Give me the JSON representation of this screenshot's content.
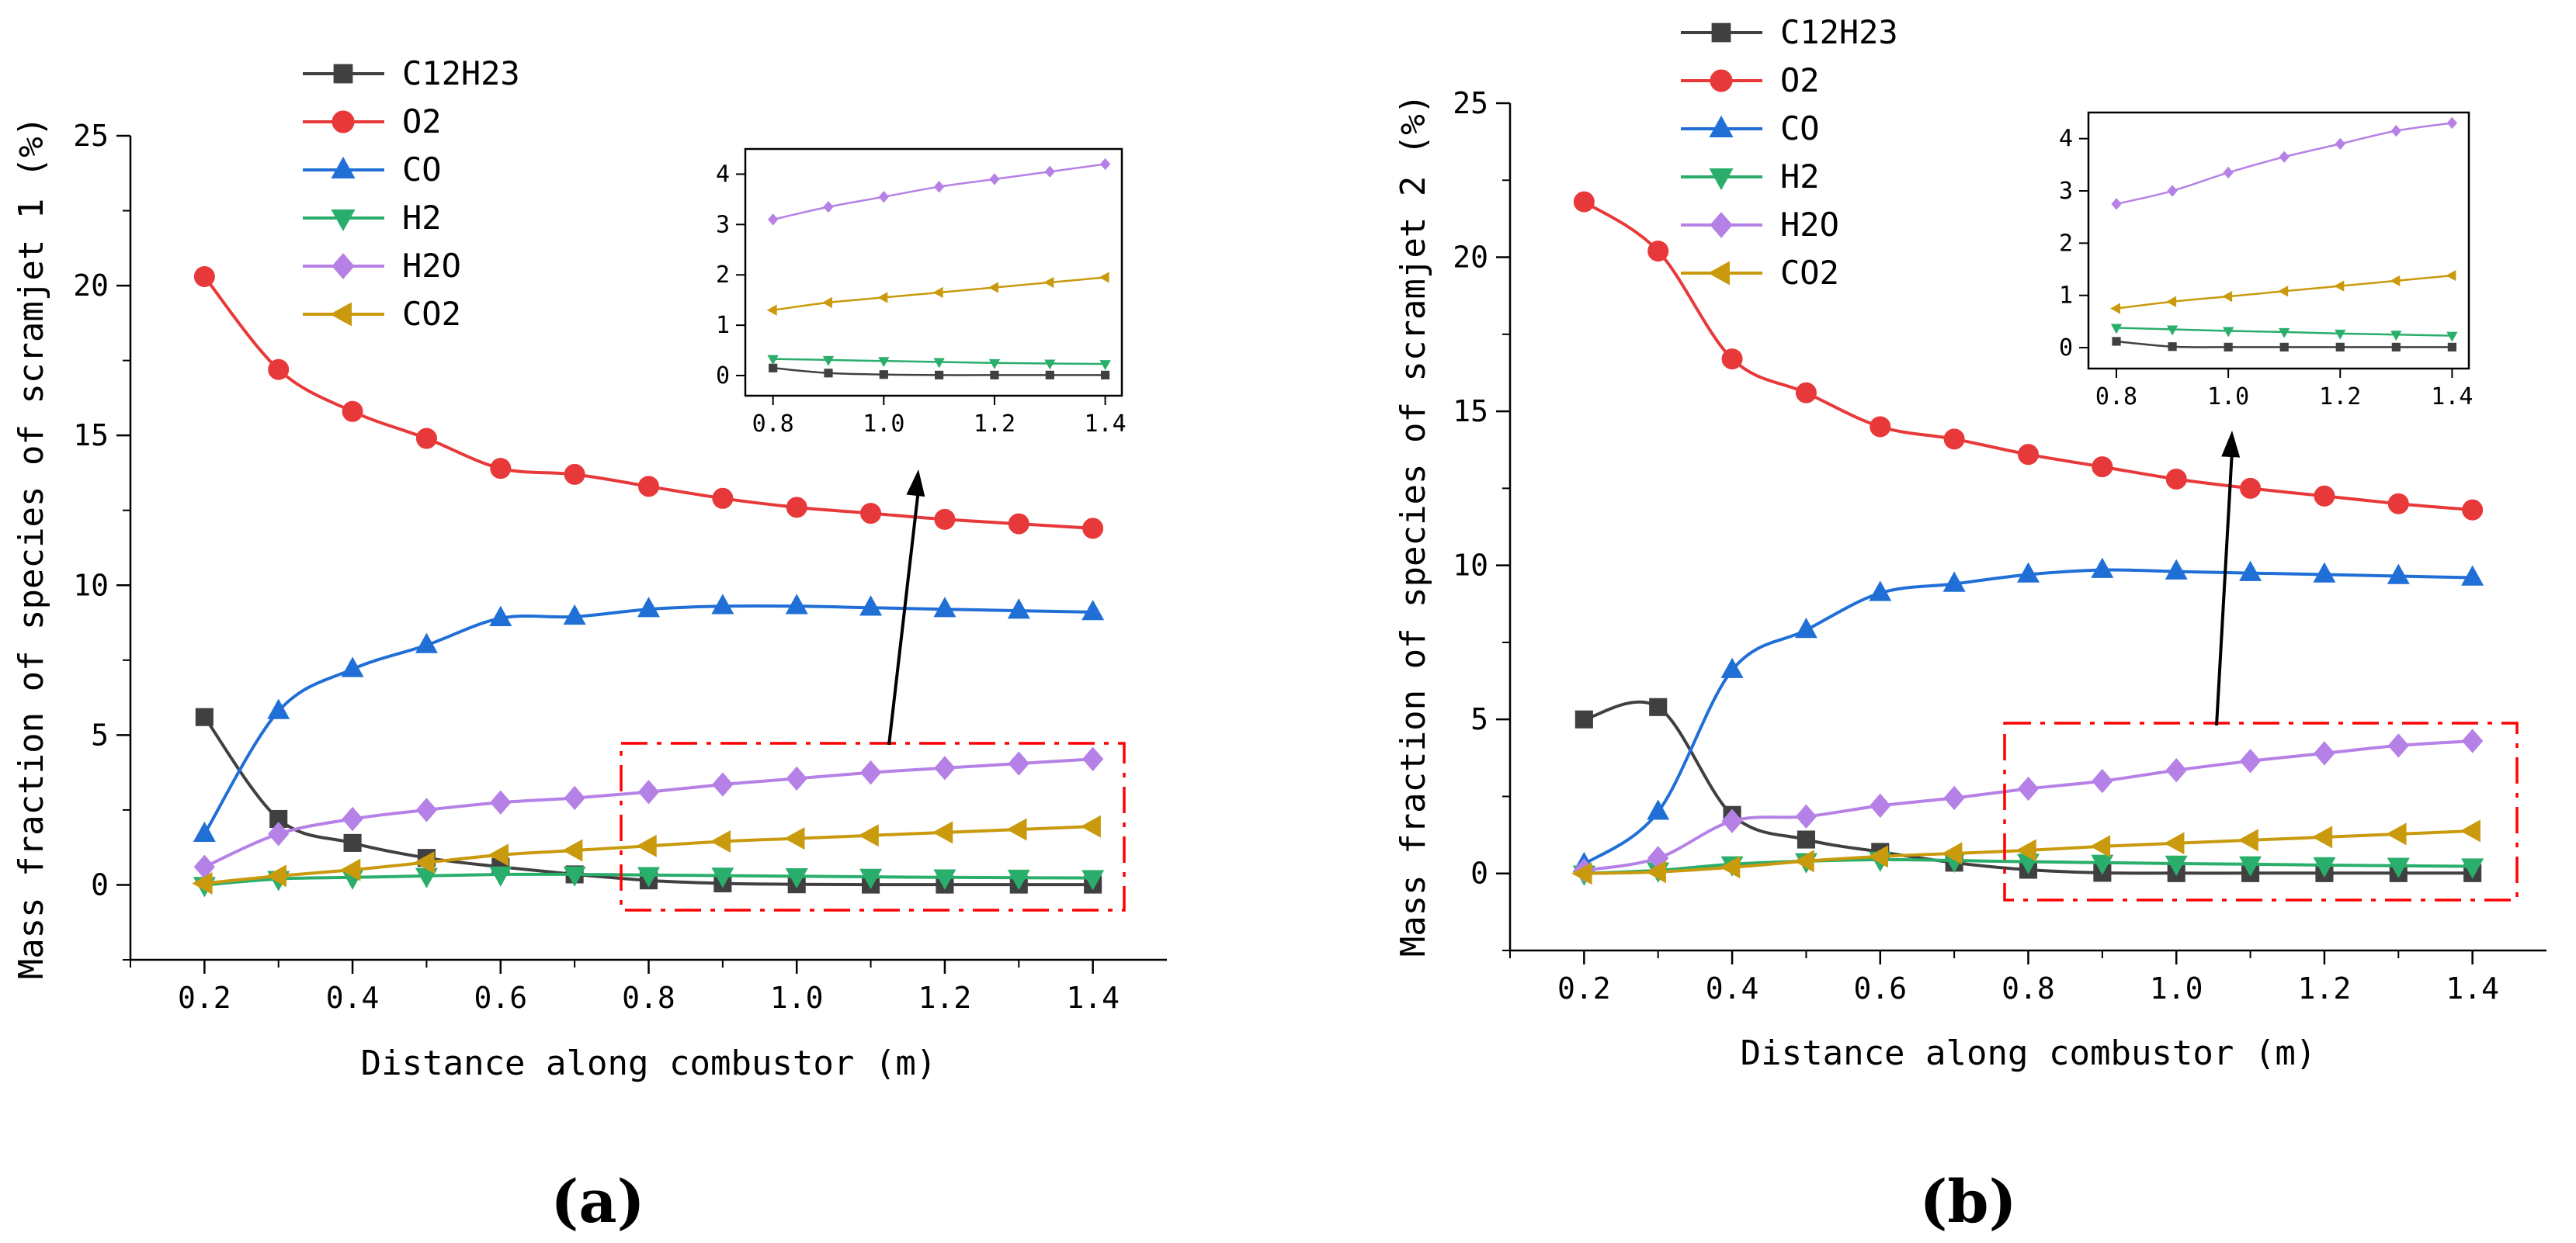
{
  "figure": {
    "panel_labels": [
      "(a)",
      "(b)"
    ]
  },
  "chart_data": [
    {
      "type": "line",
      "panel": "(a)",
      "xlabel": "Distance along combustor (m)",
      "ylabel": "Mass fraction of species of scramjet 1 (%)",
      "xlim": [
        0.1,
        1.5
      ],
      "ylim": [
        -2.5,
        25
      ],
      "xticks": [
        0.2,
        0.4,
        0.6,
        0.8,
        1.0,
        1.2,
        1.4
      ],
      "xtick_labels": [
        "0.2",
        "0.4",
        "0.6",
        "0.8",
        "1.0",
        "1.2",
        "1.4"
      ],
      "yticks": [
        0,
        5,
        10,
        15,
        20,
        25
      ],
      "ytick_labels": [
        "0",
        "5",
        "10",
        "15",
        "20",
        "25"
      ],
      "legend": "top-left",
      "x": [
        0.2,
        0.3,
        0.4,
        0.5,
        0.6,
        0.7,
        0.8,
        0.9,
        1.0,
        1.1,
        1.2,
        1.3,
        1.4
      ],
      "series": [
        {
          "name": "C12H23",
          "color": "#404040",
          "marker": "square",
          "values": [
            5.6,
            2.2,
            1.4,
            0.9,
            0.6,
            0.35,
            0.15,
            0.05,
            0.02,
            0.01,
            0.01,
            0.01,
            0.01
          ]
        },
        {
          "name": "O2",
          "color": "#e8393a",
          "marker": "circle",
          "values": [
            20.3,
            17.2,
            15.8,
            14.9,
            13.9,
            13.7,
            13.3,
            12.9,
            12.6,
            12.4,
            12.2,
            12.05,
            11.9
          ]
        },
        {
          "name": "CO",
          "color": "#1f6fd6",
          "marker": "triangle-up",
          "values": [
            1.7,
            5.8,
            7.2,
            8.0,
            8.9,
            8.95,
            9.2,
            9.3,
            9.3,
            9.25,
            9.2,
            9.15,
            9.1
          ]
        },
        {
          "name": "H2",
          "color": "#2aae6b",
          "marker": "triangle-down",
          "values": [
            0.0,
            0.2,
            0.25,
            0.3,
            0.35,
            0.35,
            0.33,
            0.31,
            0.29,
            0.27,
            0.25,
            0.24,
            0.23
          ]
        },
        {
          "name": "H2O",
          "color": "#b681e6",
          "marker": "diamond",
          "values": [
            0.6,
            1.7,
            2.2,
            2.5,
            2.75,
            2.9,
            3.1,
            3.35,
            3.55,
            3.75,
            3.9,
            4.05,
            4.2
          ]
        },
        {
          "name": "CO2",
          "color": "#c99a0d",
          "marker": "triangle-left",
          "values": [
            0.05,
            0.3,
            0.5,
            0.75,
            1.0,
            1.15,
            1.3,
            1.45,
            1.55,
            1.65,
            1.75,
            1.85,
            1.95
          ]
        }
      ],
      "inset": {
        "xlim": [
          0.75,
          1.43
        ],
        "ylim": [
          -0.4,
          4.5
        ],
        "xticks": [
          0.8,
          1.0,
          1.2,
          1.4
        ],
        "xtick_labels": [
          "0.8",
          "1.0",
          "1.2",
          "1.4"
        ],
        "yticks": [
          0,
          1,
          2,
          3,
          4
        ],
        "ytick_labels": [
          "0",
          "1",
          "2",
          "3",
          "4"
        ],
        "x_range": [
          0.8,
          1.4
        ]
      }
    },
    {
      "type": "line",
      "panel": "(b)",
      "xlabel": "Distance along combustor (m)",
      "ylabel": "Mass fraction of species of scramjet 2 (%)",
      "xlim": [
        0.1,
        1.5
      ],
      "ylim": [
        -2.5,
        25
      ],
      "xticks": [
        0.2,
        0.4,
        0.6,
        0.8,
        1.0,
        1.2,
        1.4
      ],
      "xtick_labels": [
        "0.2",
        "0.4",
        "0.6",
        "0.8",
        "1.0",
        "1.2",
        "1.4"
      ],
      "yticks": [
        0,
        5,
        10,
        15,
        20,
        25
      ],
      "ytick_labels": [
        "0",
        "5",
        "10",
        "15",
        "20",
        "25"
      ],
      "legend": "top-left",
      "x": [
        0.2,
        0.3,
        0.4,
        0.5,
        0.6,
        0.7,
        0.8,
        0.9,
        1.0,
        1.1,
        1.2,
        1.3,
        1.4
      ],
      "series": [
        {
          "name": "C12H23",
          "color": "#404040",
          "marker": "square",
          "values": [
            5.0,
            5.4,
            1.9,
            1.1,
            0.7,
            0.35,
            0.12,
            0.02,
            0.01,
            0.01,
            0.01,
            0.01,
            0.01
          ]
        },
        {
          "name": "O2",
          "color": "#e8393a",
          "marker": "circle",
          "values": [
            21.8,
            20.2,
            16.7,
            15.6,
            14.5,
            14.1,
            13.6,
            13.2,
            12.8,
            12.5,
            12.25,
            12.0,
            11.8
          ]
        },
        {
          "name": "CO",
          "color": "#1f6fd6",
          "marker": "triangle-up",
          "values": [
            0.3,
            2.0,
            6.6,
            7.9,
            9.1,
            9.4,
            9.7,
            9.85,
            9.8,
            9.75,
            9.7,
            9.65,
            9.6
          ]
        },
        {
          "name": "H2",
          "color": "#2aae6b",
          "marker": "triangle-down",
          "values": [
            0.0,
            0.1,
            0.3,
            0.4,
            0.45,
            0.42,
            0.38,
            0.35,
            0.32,
            0.3,
            0.27,
            0.25,
            0.23
          ]
        },
        {
          "name": "H2O",
          "color": "#b681e6",
          "marker": "diamond",
          "values": [
            0.1,
            0.5,
            1.7,
            1.85,
            2.2,
            2.45,
            2.75,
            3.0,
            3.35,
            3.65,
            3.9,
            4.15,
            4.3
          ]
        },
        {
          "name": "CO2",
          "color": "#c99a0d",
          "marker": "triangle-left",
          "values": [
            0.0,
            0.05,
            0.2,
            0.4,
            0.55,
            0.65,
            0.75,
            0.88,
            0.98,
            1.08,
            1.18,
            1.28,
            1.38
          ]
        }
      ],
      "inset": {
        "xlim": [
          0.75,
          1.43
        ],
        "ylim": [
          -0.4,
          4.5
        ],
        "xticks": [
          0.8,
          1.0,
          1.2,
          1.4
        ],
        "xtick_labels": [
          "0.8",
          "1.0",
          "1.2",
          "1.4"
        ],
        "yticks": [
          0,
          1,
          2,
          3,
          4
        ],
        "ytick_labels": [
          "0",
          "1",
          "2",
          "3",
          "4"
        ],
        "x_range": [
          0.8,
          1.4
        ]
      }
    }
  ]
}
